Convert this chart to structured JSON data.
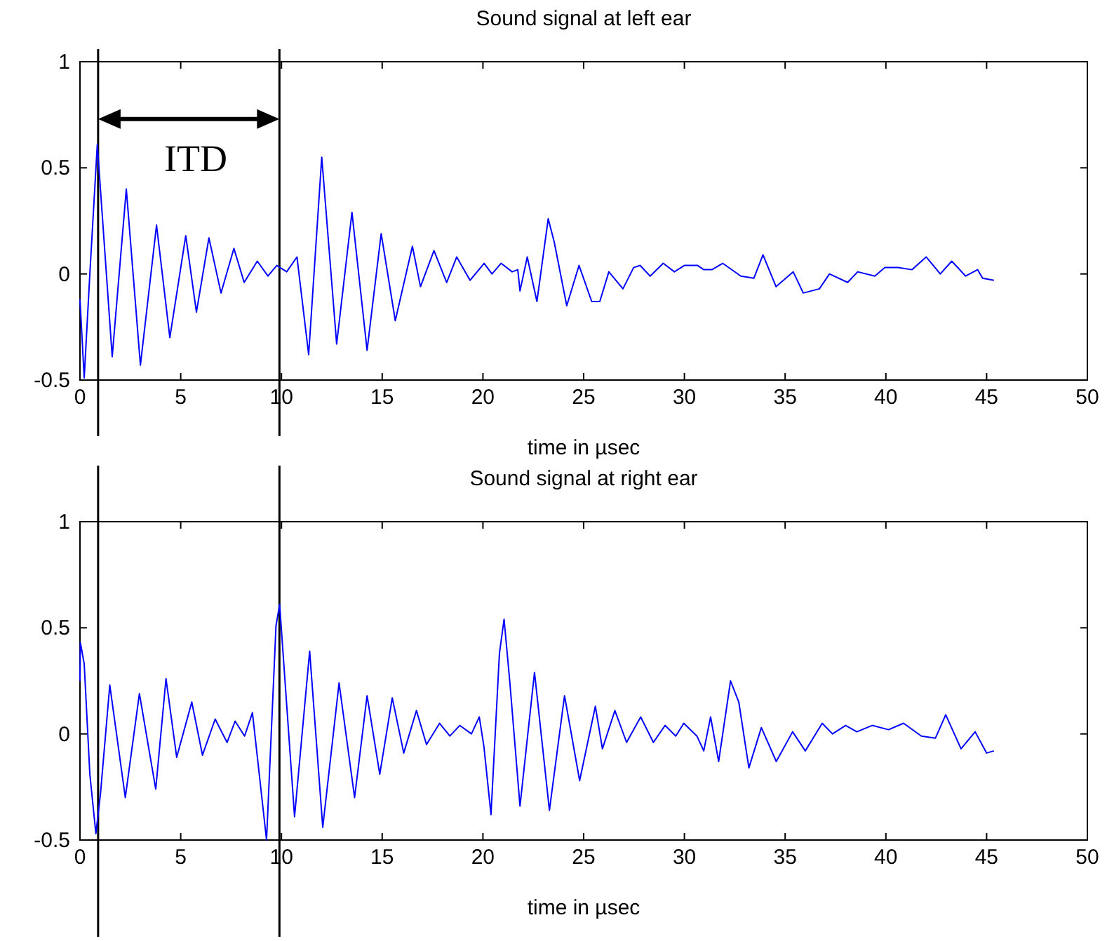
{
  "chart_data": [
    {
      "type": "line",
      "title": "Sound signal at left ear",
      "xlabel": "time in µsec",
      "annotations": [
        "ITD"
      ],
      "series": [
        {
          "color": "#0000ff",
          "x": [
            0,
            0.21,
            0.49,
            0.86,
            1.6,
            2.3,
            3.0,
            3.8,
            4.46,
            5.25,
            5.78,
            6.4,
            7.0,
            7.64,
            8.15,
            8.8,
            9.33,
            9.77,
            10.26,
            10.77,
            11.35,
            12.0,
            12.74,
            13.5,
            14.25,
            14.95,
            15.65,
            16.5,
            16.9,
            17.57,
            18.2,
            18.7,
            19.36,
            20.06,
            20.45,
            20.9,
            21.45,
            21.73,
            21.84,
            22.2,
            22.68,
            23.24,
            23.54,
            24.16,
            24.77,
            25.4,
            25.8,
            26.25,
            26.95,
            27.48,
            27.8,
            28.3,
            28.95,
            29.5,
            30.0,
            30.66,
            30.96,
            31.36,
            31.9,
            32.8,
            33.45,
            33.9,
            34.55,
            35.4,
            35.9,
            36.7,
            37.2,
            38.1,
            38.6,
            39.45,
            39.95,
            40.6,
            41.3,
            42.0,
            42.7,
            43.27,
            43.96,
            44.55,
            44.8,
            45.36
          ],
          "values": [
            -0.12,
            -0.49,
            0,
            0.61,
            -0.39,
            0.4,
            -0.43,
            0.23,
            -0.3,
            0.18,
            -0.18,
            0.17,
            -0.09,
            0.12,
            -0.04,
            0.06,
            -0.01,
            0.04,
            0.01,
            0.08,
            -0.38,
            0.55,
            -0.33,
            0.29,
            -0.36,
            0.19,
            -0.22,
            0.13,
            -0.06,
            0.11,
            -0.04,
            0.08,
            -0.03,
            0.05,
            0,
            0.05,
            0.01,
            0.02,
            -0.08,
            0.08,
            -0.13,
            0.26,
            0.15,
            -0.15,
            0.04,
            -0.13,
            -0.13,
            0.01,
            -0.07,
            0.03,
            0.04,
            -0.01,
            0.05,
            0.01,
            0.04,
            0.04,
            0.02,
            0.02,
            0.05,
            -0.01,
            -0.02,
            0.09,
            -0.06,
            0.01,
            -0.09,
            -0.07,
            0,
            -0.04,
            0.01,
            -0.01,
            0.03,
            0.03,
            0.02,
            0.08,
            0,
            0.06,
            -0.01,
            0.02,
            -0.02,
            -0.03
          ]
        }
      ],
      "xlim": [
        0,
        50
      ],
      "xticks": [
        0,
        5,
        10,
        15,
        20,
        25,
        30,
        35,
        40,
        45,
        50
      ],
      "ylim": [
        -0.5,
        1
      ],
      "yticks": [
        -0.5,
        0,
        0.5,
        1
      ],
      "ref_lines": [
        {
          "axis": "x",
          "value": 0.9,
          "color": "#000000"
        },
        {
          "axis": "x",
          "value": 9.9,
          "color": "#000000"
        }
      ]
    },
    {
      "type": "line",
      "title": "Sound signal at right ear",
      "xlabel": "time in µsec",
      "series": [
        {
          "color": "#0000ff",
          "x": [
            0,
            0.02,
            0.21,
            0.49,
            0.79,
            1.02,
            1.48,
            2.25,
            2.95,
            3.76,
            4.27,
            4.8,
            5.55,
            6.08,
            6.71,
            7.3,
            7.7,
            8.17,
            8.56,
            9.26,
            9.73,
            9.91,
            10.65,
            11.4,
            12.05,
            12.86,
            13.63,
            14.25,
            14.88,
            15.5,
            16.07,
            16.7,
            17.2,
            17.85,
            18.36,
            18.85,
            19.43,
            19.82,
            20.05,
            20.4,
            20.82,
            21.05,
            21.33,
            21.84,
            22.56,
            23.3,
            24.05,
            24.8,
            25.58,
            25.93,
            26.55,
            27.13,
            27.83,
            28.46,
            29.04,
            29.57,
            29.97,
            30.62,
            30.96,
            31.3,
            31.7,
            32.29,
            32.7,
            33.2,
            33.82,
            34.56,
            35.37,
            36.0,
            36.84,
            37.35,
            38.0,
            38.56,
            39.32,
            40.13,
            40.88,
            41.76,
            42.46,
            42.97,
            43.73,
            44.43,
            45.0,
            45.36
          ],
          "values": [
            0.25,
            0.43,
            0.33,
            -0.19,
            -0.47,
            -0.28,
            0.23,
            -0.3,
            0.19,
            -0.26,
            0.26,
            -0.11,
            0.15,
            -0.1,
            0.07,
            -0.04,
            0.06,
            -0.01,
            0.1,
            -0.5,
            0.51,
            0.61,
            -0.39,
            0.39,
            -0.44,
            0.24,
            -0.3,
            0.18,
            -0.19,
            0.17,
            -0.09,
            0.11,
            -0.05,
            0.05,
            -0.01,
            0.04,
            0,
            0.08,
            -0.06,
            -0.38,
            0.38,
            0.54,
            0.25,
            -0.34,
            0.29,
            -0.36,
            0.18,
            -0.22,
            0.13,
            -0.07,
            0.11,
            -0.04,
            0.08,
            -0.04,
            0.04,
            -0.01,
            0.05,
            -0.01,
            -0.08,
            0.08,
            -0.13,
            0.25,
            0.15,
            -0.16,
            0.03,
            -0.13,
            0.01,
            -0.08,
            0.05,
            0,
            0.04,
            0.01,
            0.04,
            0.02,
            0.05,
            -0.01,
            -0.02,
            0.09,
            -0.07,
            0.01,
            -0.09,
            -0.08
          ]
        }
      ],
      "xlim": [
        0,
        50
      ],
      "xticks": [
        0,
        5,
        10,
        15,
        20,
        25,
        30,
        35,
        40,
        45,
        50
      ],
      "ylim": [
        -0.5,
        1
      ],
      "yticks": [
        -0.5,
        0,
        0.5,
        1
      ],
      "ref_lines": [
        {
          "axis": "x",
          "value": 0.9,
          "color": "#000000"
        },
        {
          "axis": "x",
          "value": 9.9,
          "color": "#000000"
        }
      ]
    }
  ]
}
